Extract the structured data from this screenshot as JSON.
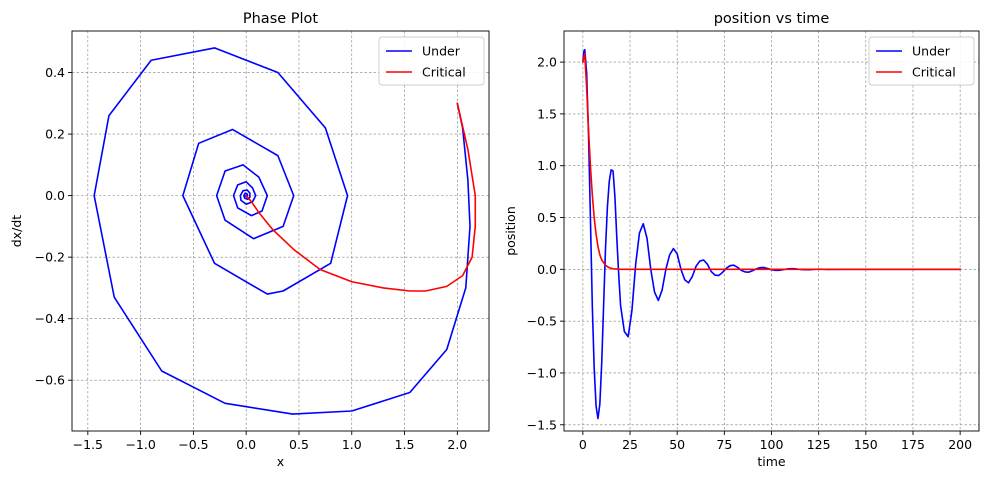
{
  "chart_data": [
    {
      "type": "line",
      "title": "Phase Plot",
      "xlabel": "x",
      "ylabel": "dx/dt",
      "xlim": [
        -1.65,
        2.3
      ],
      "ylim": [
        -0.765,
        0.535
      ],
      "xticks": [
        -1.5,
        -1.0,
        -0.5,
        0.0,
        0.5,
        1.0,
        1.5,
        2.0
      ],
      "xtick_labels": [
        "−1.5",
        "−1.0",
        "−0.5",
        "0.0",
        "0.5",
        "1.0",
        "1.5",
        "2.0"
      ],
      "yticks": [
        -0.6,
        -0.4,
        -0.2,
        0.0,
        0.2,
        0.4
      ],
      "ytick_labels": [
        "−0.6",
        "−0.4",
        "−0.2",
        "0.0",
        "0.2",
        "0.4"
      ],
      "grid": true,
      "legend_position": "top-right",
      "series": [
        {
          "name": "Under",
          "color": "#0000ff",
          "points": [
            [
              2.0,
              0.3
            ],
            [
              2.05,
              0.22
            ],
            [
              2.1,
              0.05
            ],
            [
              2.12,
              -0.1
            ],
            [
              2.08,
              -0.3
            ],
            [
              1.9,
              -0.5
            ],
            [
              1.55,
              -0.64
            ],
            [
              1.0,
              -0.7
            ],
            [
              0.44,
              -0.71
            ],
            [
              -0.2,
              -0.675
            ],
            [
              -0.8,
              -0.57
            ],
            [
              -1.25,
              -0.33
            ],
            [
              -1.44,
              0.0
            ],
            [
              -1.3,
              0.26
            ],
            [
              -0.9,
              0.44
            ],
            [
              -0.3,
              0.48
            ],
            [
              0.3,
              0.4
            ],
            [
              0.75,
              0.22
            ],
            [
              0.96,
              0.0
            ],
            [
              0.8,
              -0.22
            ],
            [
              0.35,
              -0.31
            ],
            [
              0.2,
              -0.32
            ],
            [
              -0.3,
              -0.22
            ],
            [
              -0.6,
              0.0
            ],
            [
              -0.45,
              0.17
            ],
            [
              -0.13,
              0.215
            ],
            [
              0.3,
              0.13
            ],
            [
              0.45,
              0.0
            ],
            [
              0.35,
              -0.1
            ],
            [
              0.07,
              -0.14
            ],
            [
              -0.2,
              -0.08
            ],
            [
              -0.28,
              0.0
            ],
            [
              -0.2,
              0.08
            ],
            [
              -0.03,
              0.1
            ],
            [
              0.12,
              0.06
            ],
            [
              0.2,
              0.0
            ],
            [
              0.15,
              -0.05
            ],
            [
              0.05,
              -0.065
            ],
            [
              -0.08,
              -0.04
            ],
            [
              -0.12,
              0.0
            ],
            [
              -0.08,
              0.035
            ],
            [
              0.0,
              0.045
            ],
            [
              0.06,
              0.025
            ],
            [
              0.09,
              0.0
            ],
            [
              0.06,
              -0.02
            ],
            [
              0.0,
              -0.028
            ],
            [
              -0.05,
              -0.015
            ],
            [
              -0.055,
              0.0
            ],
            [
              -0.03,
              0.016
            ],
            [
              0.01,
              0.018
            ],
            [
              0.035,
              0.008
            ],
            [
              0.035,
              -0.005
            ],
            [
              0.015,
              -0.012
            ],
            [
              -0.015,
              -0.008
            ],
            [
              -0.022,
              0.0
            ],
            [
              -0.01,
              0.008
            ],
            [
              0.008,
              0.006
            ],
            [
              0.012,
              0.0
            ],
            [
              0.0,
              -0.004
            ],
            [
              -0.005,
              0.0
            ],
            [
              0.0,
              0.0
            ]
          ]
        },
        {
          "name": "Critical",
          "color": "#ff0000",
          "points": [
            [
              2.0,
              0.3
            ],
            [
              2.1,
              0.15
            ],
            [
              2.17,
              0.0
            ],
            [
              2.17,
              -0.1
            ],
            [
              2.14,
              -0.2
            ],
            [
              2.05,
              -0.26
            ],
            [
              1.9,
              -0.295
            ],
            [
              1.7,
              -0.31
            ],
            [
              1.55,
              -0.31
            ],
            [
              1.3,
              -0.3
            ],
            [
              1.0,
              -0.28
            ],
            [
              0.7,
              -0.24
            ],
            [
              0.45,
              -0.175
            ],
            [
              0.25,
              -0.11
            ],
            [
              0.12,
              -0.055
            ],
            [
              0.05,
              -0.02
            ],
            [
              0.0,
              0.0
            ]
          ]
        }
      ]
    },
    {
      "type": "line",
      "title": "position vs time",
      "xlabel": "time",
      "ylabel": "position",
      "xlim": [
        -10,
        210
      ],
      "ylim": [
        -1.56,
        2.3
      ],
      "xticks": [
        0,
        25,
        50,
        75,
        100,
        125,
        150,
        175,
        200
      ],
      "xtick_labels": [
        "0",
        "25",
        "50",
        "75",
        "100",
        "125",
        "150",
        "175",
        "200"
      ],
      "yticks": [
        -1.5,
        -1.0,
        -0.5,
        0.0,
        0.5,
        1.0,
        1.5,
        2.0
      ],
      "ytick_labels": [
        "−1.5",
        "−1.0",
        "−0.5",
        "0.0",
        "0.5",
        "1.0",
        "1.5",
        "2.0"
      ],
      "grid": true,
      "legend_position": "top-right",
      "series": [
        {
          "name": "Under",
          "color": "#0000ff",
          "points": [
            [
              0,
              2.0
            ],
            [
              0.5,
              2.1
            ],
            [
              1,
              2.12
            ],
            [
              2,
              1.9
            ],
            [
              3,
              1.3
            ],
            [
              4,
              0.5
            ],
            [
              5,
              -0.35
            ],
            [
              6,
              -0.95
            ],
            [
              7,
              -1.32
            ],
            [
              8,
              -1.44
            ],
            [
              9,
              -1.3
            ],
            [
              10,
              -0.9
            ],
            [
              11,
              -0.35
            ],
            [
              12,
              0.2
            ],
            [
              13,
              0.6
            ],
            [
              14,
              0.85
            ],
            [
              15,
              0.96
            ],
            [
              16,
              0.95
            ],
            [
              17,
              0.7
            ],
            [
              18,
              0.3
            ],
            [
              19,
              -0.05
            ],
            [
              20,
              -0.35
            ],
            [
              22,
              -0.6
            ],
            [
              24,
              -0.65
            ],
            [
              26,
              -0.4
            ],
            [
              28,
              0.05
            ],
            [
              30,
              0.35
            ],
            [
              32,
              0.44
            ],
            [
              34,
              0.3
            ],
            [
              36,
              0.0
            ],
            [
              38,
              -0.22
            ],
            [
              40,
              -0.3
            ],
            [
              42,
              -0.2
            ],
            [
              44,
              0.0
            ],
            [
              46,
              0.14
            ],
            [
              48,
              0.2
            ],
            [
              50,
              0.15
            ],
            [
              52,
              0.0
            ],
            [
              54,
              -0.1
            ],
            [
              56,
              -0.13
            ],
            [
              58,
              -0.07
            ],
            [
              60,
              0.03
            ],
            [
              62,
              0.08
            ],
            [
              64,
              0.09
            ],
            [
              66,
              0.05
            ],
            [
              68,
              -0.02
            ],
            [
              70,
              -0.055
            ],
            [
              72,
              -0.06
            ],
            [
              74,
              -0.03
            ],
            [
              76,
              0.01
            ],
            [
              78,
              0.035
            ],
            [
              80,
              0.04
            ],
            [
              82,
              0.02
            ],
            [
              84,
              -0.01
            ],
            [
              86,
              -0.025
            ],
            [
              88,
              -0.027
            ],
            [
              90,
              -0.012
            ],
            [
              92,
              0.005
            ],
            [
              94,
              0.016
            ],
            [
              96,
              0.018
            ],
            [
              98,
              0.008
            ],
            [
              100,
              -0.004
            ],
            [
              102,
              -0.01
            ],
            [
              104,
              -0.01
            ],
            [
              106,
              -0.004
            ],
            [
              108,
              0.003
            ],
            [
              110,
              0.007
            ],
            [
              112,
              0.006
            ],
            [
              114,
              0.002
            ],
            [
              116,
              -0.002
            ],
            [
              118,
              -0.004
            ],
            [
              120,
              -0.003
            ],
            [
              125,
              0.002
            ],
            [
              130,
              -0.001
            ],
            [
              140,
              0.0
            ],
            [
              150,
              0.0
            ],
            [
              200,
              0.0
            ]
          ]
        },
        {
          "name": "Critical",
          "color": "#ff0000",
          "points": [
            [
              0,
              2.0
            ],
            [
              1,
              2.08
            ],
            [
              2,
              1.75
            ],
            [
              3,
              1.35
            ],
            [
              4,
              1.0
            ],
            [
              5,
              0.72
            ],
            [
              6,
              0.5
            ],
            [
              7,
              0.34
            ],
            [
              8,
              0.22
            ],
            [
              9,
              0.14
            ],
            [
              10,
              0.09
            ],
            [
              12,
              0.04
            ],
            [
              14,
              0.015
            ],
            [
              16,
              0.005
            ],
            [
              20,
              0.0
            ],
            [
              200,
              0.0
            ]
          ]
        }
      ]
    }
  ]
}
